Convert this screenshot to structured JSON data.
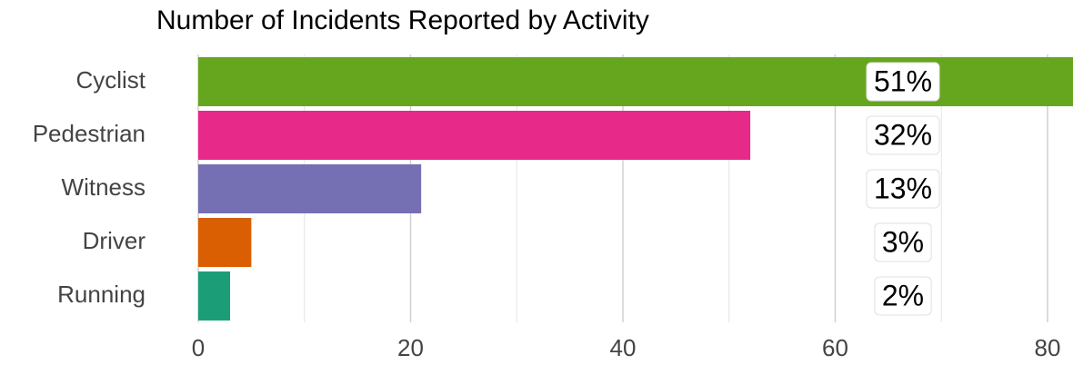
{
  "chart_data": {
    "type": "bar",
    "orientation": "horizontal",
    "title": "Number of Incidents Reported by Activity",
    "categories": [
      "Cyclist",
      "Pedestrian",
      "Witness",
      "Driver",
      "Running"
    ],
    "values": [
      83,
      52,
      21,
      5,
      3
    ],
    "colors": [
      "#66a61e",
      "#e7298a",
      "#7570b3",
      "#d95f02",
      "#1b9e77"
    ],
    "percent_values": [
      51,
      32,
      13,
      3,
      2
    ],
    "percent_labels": [
      "51%",
      "32%",
      "13%",
      "3%",
      "2%"
    ],
    "xlim": [
      0,
      82.4
    ],
    "xticks": [
      0,
      20,
      40,
      60,
      80
    ],
    "minor_xticks": [
      10,
      30,
      50,
      70
    ],
    "grid": true
  }
}
